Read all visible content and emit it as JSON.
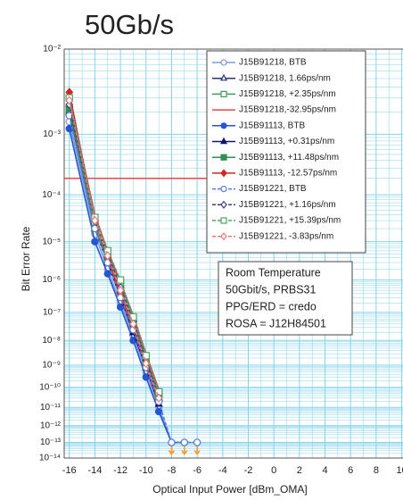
{
  "chart_data": {
    "type": "line",
    "title": "50Gb/s",
    "xlabel": "Optical Input Power [dBm_OMA]",
    "ylabel": "Bit Error Rate",
    "xlim": [
      -16.4,
      10.1
    ],
    "xticks": [
      -16,
      -14,
      -12,
      -10,
      -8,
      -6,
      -4,
      -2,
      0,
      2,
      4,
      6,
      8,
      10
    ],
    "ylim": [
      0.01,
      1e-14
    ],
    "yscale": "loglog",
    "yticks": [
      {
        "value": 0.01,
        "label": "10⁻²"
      },
      {
        "value": 0.001,
        "label": "10⁻³"
      },
      {
        "value": 0.0001,
        "label": "10⁻⁴"
      },
      {
        "value": 1e-05,
        "label": "10⁻⁵"
      },
      {
        "value": 1e-06,
        "label": "10⁻⁶"
      },
      {
        "value": 1e-07,
        "label": "10⁻⁷"
      },
      {
        "value": 1e-08,
        "label": "10⁻⁸"
      },
      {
        "value": 1e-09,
        "label": "10⁻⁹"
      },
      {
        "value": 1e-10,
        "label": "10⁻¹⁰"
      },
      {
        "value": 1e-11,
        "label": "10⁻¹¹"
      },
      {
        "value": 1e-12,
        "label": "10⁻¹²"
      },
      {
        "value": 1e-13,
        "label": "10⁻¹³"
      },
      {
        "value": 1e-14,
        "label": "10⁻¹⁴"
      }
    ],
    "grid": true,
    "grid_color": "#86d3ea",
    "hline": {
      "value": 0.0002,
      "x": [
        -16.4,
        -5
      ],
      "color": "#e8484a"
    },
    "annotation": [
      "Room Temperature",
      "50Gbit/s, PRBS31",
      "PPG/ERD = credo",
      "ROSA = J12H84501"
    ],
    "series": [
      {
        "name": "J15B91218, BTB",
        "color": "#7b9be0",
        "marker": "circle",
        "filled": false,
        "dashed": false,
        "x": [
          -16,
          -14,
          -13,
          -12,
          -11,
          -10,
          -9,
          -8,
          -7,
          -6
        ],
        "values": [
          0.0015,
          1.5e-05,
          2e-06,
          2e-07,
          1.5e-08,
          5e-10,
          1e-11,
          1e-13,
          1e-13,
          1e-13
        ]
      },
      {
        "name": "J15B91218, 1.66ps/nm",
        "color": "#2b2f7e",
        "marker": "triangle",
        "filled": false,
        "dashed": false,
        "x": [
          -16,
          -14,
          -13,
          -12,
          -11,
          -10,
          -9
        ],
        "values": [
          0.0025,
          3e-05,
          4e-06,
          5e-07,
          4e-08,
          1.5e-09,
          3e-11
        ]
      },
      {
        "name": "J15B91218, +2.35ps/nm",
        "color": "#3d9a5c",
        "marker": "square",
        "filled": false,
        "dashed": false,
        "x": [
          -16,
          -14,
          -13,
          -12,
          -11,
          -10,
          -9
        ],
        "values": [
          0.002,
          2.5e-05,
          5e-06,
          8e-07,
          6e-08,
          2e-09,
          5e-11
        ]
      },
      {
        "name": "J15B91218,-32.95ps/nm",
        "color": "#e8484a",
        "marker": "none",
        "filled": false,
        "dashed": false,
        "x": [
          -16,
          -14,
          -13,
          -12,
          -11,
          -10,
          -9
        ],
        "values": [
          0.003,
          4e-05,
          6e-06,
          9e-07,
          8e-08,
          3e-09,
          8e-11
        ]
      },
      {
        "name": "J15B91113, BTB",
        "color": "#2456d4",
        "marker": "circle",
        "filled": true,
        "dashed": false,
        "x": [
          -16,
          -14,
          -13,
          -12,
          -11,
          -10,
          -9,
          -8,
          -7
        ],
        "values": [
          0.0012,
          1e-05,
          1.5e-06,
          1.5e-07,
          1e-08,
          3e-10,
          6e-12,
          1e-13,
          1e-13
        ]
      },
      {
        "name": "J15B91113, +0.31ps/nm",
        "color": "#12166a",
        "marker": "triangle",
        "filled": true,
        "dashed": false,
        "x": [
          -16,
          -14,
          -13,
          -12,
          -11,
          -10,
          -9
        ],
        "values": [
          0.002,
          2e-05,
          3e-06,
          3e-07,
          2e-08,
          8e-10,
          1.5e-11
        ]
      },
      {
        "name": "J15B91113, +11.48ps/nm",
        "color": "#2f8f50",
        "marker": "square",
        "filled": true,
        "dashed": false,
        "x": [
          -16,
          -14,
          -13,
          -12,
          -11,
          -10,
          -9
        ],
        "values": [
          0.0022,
          2e-05,
          4e-06,
          5e-07,
          4e-08,
          1e-09,
          3e-11
        ]
      },
      {
        "name": "J15B91113, -12.57ps/nm",
        "color": "#d42424",
        "marker": "diamond",
        "filled": true,
        "dashed": false,
        "x": [
          -16,
          -14,
          -13,
          -12,
          -11,
          -10,
          -9
        ],
        "values": [
          0.0035,
          3e-05,
          4e-06,
          4e-07,
          3e-08,
          1e-09,
          2e-11
        ]
      },
      {
        "name": "J15B91221, BTB",
        "color": "#5a7fd8",
        "marker": "circle",
        "filled": false,
        "dashed": true,
        "x": [
          -16,
          -14,
          -13,
          -12,
          -11,
          -10,
          -9,
          -8,
          -7,
          -6
        ],
        "values": [
          0.0018,
          2e-05,
          3e-06,
          3e-07,
          2.5e-08,
          8e-10,
          2e-11,
          1e-13,
          1e-13,
          1e-13
        ]
      },
      {
        "name": "J15B91221, +1.16ps/nm",
        "color": "#3a3f8e",
        "marker": "diamond",
        "filled": false,
        "dashed": true,
        "x": [
          -16,
          -14,
          -13,
          -12,
          -11,
          -10,
          -9
        ],
        "values": [
          0.0025,
          3e-05,
          5e-06,
          6e-07,
          5e-08,
          2e-09,
          5e-11
        ]
      },
      {
        "name": "J15B91221, +15.39ps/nm",
        "color": "#4aa868",
        "marker": "square",
        "filled": false,
        "dashed": true,
        "x": [
          -16,
          -14,
          -13,
          -12,
          -11,
          -10,
          -9
        ],
        "values": [
          0.003,
          3.5e-05,
          6e-06,
          1e-06,
          7e-08,
          2.5e-09,
          6e-11
        ]
      },
      {
        "name": "J15B91221, -3.83ps/nm",
        "color": "#e77a7a",
        "marker": "diamond",
        "filled": false,
        "dashed": true,
        "x": [
          -16,
          -14,
          -13,
          -12,
          -11,
          -10,
          -9
        ],
        "values": [
          0.0028,
          3e-05,
          4.5e-06,
          5e-07,
          4e-08,
          1.2e-09,
          3e-11
        ]
      }
    ]
  }
}
